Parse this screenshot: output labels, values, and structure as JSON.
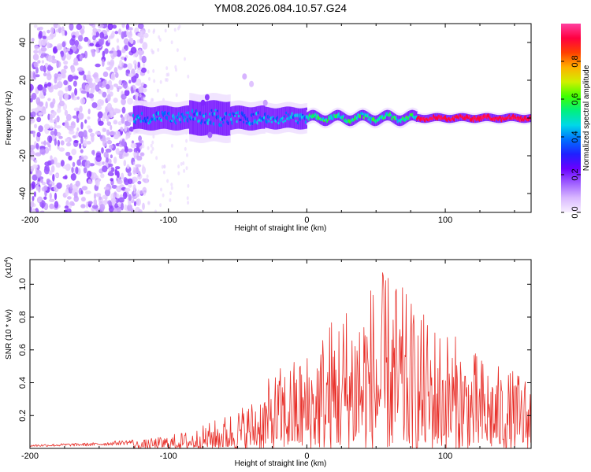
{
  "title": "YM08.2026.084.10.57.G24",
  "chart_data": [
    {
      "type": "heatmap",
      "name": "spectrogram",
      "xlabel": "Height of straight line (km)",
      "ylabel": "Frequency (Hz)",
      "xlim": [
        -200,
        162
      ],
      "ylim": [
        -50,
        50
      ],
      "xticks": [
        "-200",
        "-100",
        "0",
        "100"
      ],
      "yticks": [
        "40",
        "20",
        "0",
        "-20",
        "-40"
      ],
      "colorbar": {
        "label": "Normalized spectral amplitude",
        "range": [
          0,
          1
        ],
        "ticks": [
          "0.0",
          "0.2",
          "0.4",
          "0.6",
          "0.8"
        ],
        "colors": [
          "#f8f0ff",
          "#d9b8ff",
          "#a060ff",
          "#6a00ff",
          "#2020ff",
          "#0070ff",
          "#00d8e8",
          "#00f080",
          "#40ff00",
          "#d0f000",
          "#ffb000",
          "#ff4000",
          "#ff0040",
          "#ff40a0"
        ]
      },
      "description_bands": [
        {
          "x_range": [
            -200,
            -122
          ],
          "kind": "noise",
          "amplitude": 0.1
        },
        {
          "x_range": [
            -125,
            0
          ],
          "center_freq": 0,
          "half_width_hz": 8,
          "amplitude": 0.35
        },
        {
          "x_range": [
            0,
            80
          ],
          "center_freq": 0,
          "half_width_hz": 4,
          "amplitude": 0.5
        },
        {
          "x_range": [
            80,
            162
          ],
          "center_freq": 0,
          "half_width_hz": 3,
          "amplitude": 0.95
        }
      ]
    },
    {
      "type": "line",
      "name": "snr",
      "xlabel": "Height of straight line (km)",
      "ylabel": "SNR (10 * v/v)",
      "y_multiplier": "(x10",
      "y_multiplier_exp": "4",
      "y_multiplier_close": ")",
      "xlim": [
        -200,
        162
      ],
      "ylim": [
        0,
        1.15
      ],
      "xticks": [
        "-200",
        "-100",
        "0",
        "100"
      ],
      "yticks": [
        "0.2",
        "0.4",
        "0.6",
        "0.8",
        "1.0"
      ],
      "color": "#e8302a",
      "envelope": [
        {
          "x": -200,
          "y": 0.02
        },
        {
          "x": -150,
          "y": 0.03
        },
        {
          "x": -120,
          "y": 0.05
        },
        {
          "x": -100,
          "y": 0.08
        },
        {
          "x": -80,
          "y": 0.12
        },
        {
          "x": -60,
          "y": 0.2
        },
        {
          "x": -40,
          "y": 0.3
        },
        {
          "x": -20,
          "y": 0.5
        },
        {
          "x": 0,
          "y": 0.6
        },
        {
          "x": 20,
          "y": 0.85
        },
        {
          "x": 40,
          "y": 1.0
        },
        {
          "x": 60,
          "y": 1.1
        },
        {
          "x": 80,
          "y": 0.85
        },
        {
          "x": 100,
          "y": 0.75
        },
        {
          "x": 120,
          "y": 0.6
        },
        {
          "x": 140,
          "y": 0.5
        },
        {
          "x": 162,
          "y": 0.45
        }
      ]
    }
  ]
}
